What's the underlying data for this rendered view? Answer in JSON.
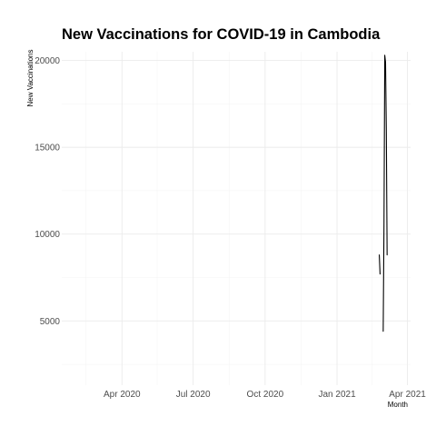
{
  "chart_data": {
    "type": "line",
    "title": "New Vaccinations for COVID-19 in Cambodia",
    "xlabel": "Month",
    "ylabel": "New Vaccinations",
    "x_axis": {
      "type": "date",
      "range": [
        "2020-01-15",
        "2021-04-05"
      ],
      "ticks": [
        {
          "date": "2020-04-01",
          "label": "Apr 2020"
        },
        {
          "date": "2020-07-01",
          "label": "Jul 2020"
        },
        {
          "date": "2020-10-01",
          "label": "Oct 2020"
        },
        {
          "date": "2021-01-01",
          "label": "Jan 2021"
        },
        {
          "date": "2021-04-01",
          "label": "Apr 2021"
        }
      ],
      "minor_ticks": [
        "2020-02-15",
        "2020-05-16",
        "2020-08-16",
        "2020-11-16",
        "2021-02-15"
      ]
    },
    "y_axis": {
      "range": [
        1300,
        20500
      ],
      "ticks": [
        5000,
        10000,
        15000,
        20000
      ],
      "minor_ticks": [
        2500,
        7500,
        12500,
        17500
      ]
    },
    "grid": true,
    "line_color": "#000000",
    "series": [
      {
        "segments": [
          [
            {
              "x": "2021-02-24",
              "y": 8800
            },
            {
              "x": "2021-02-25",
              "y": 7700
            }
          ],
          [
            {
              "x": "2021-03-01",
              "y": 4400
            },
            {
              "x": "2021-03-02",
              "y": 10500
            },
            {
              "x": "2021-03-03",
              "y": 20300
            },
            {
              "x": "2021-03-04",
              "y": 19900
            },
            {
              "x": "2021-03-05",
              "y": 16000
            },
            {
              "x": "2021-03-06",
              "y": 8800
            }
          ]
        ]
      }
    ]
  }
}
